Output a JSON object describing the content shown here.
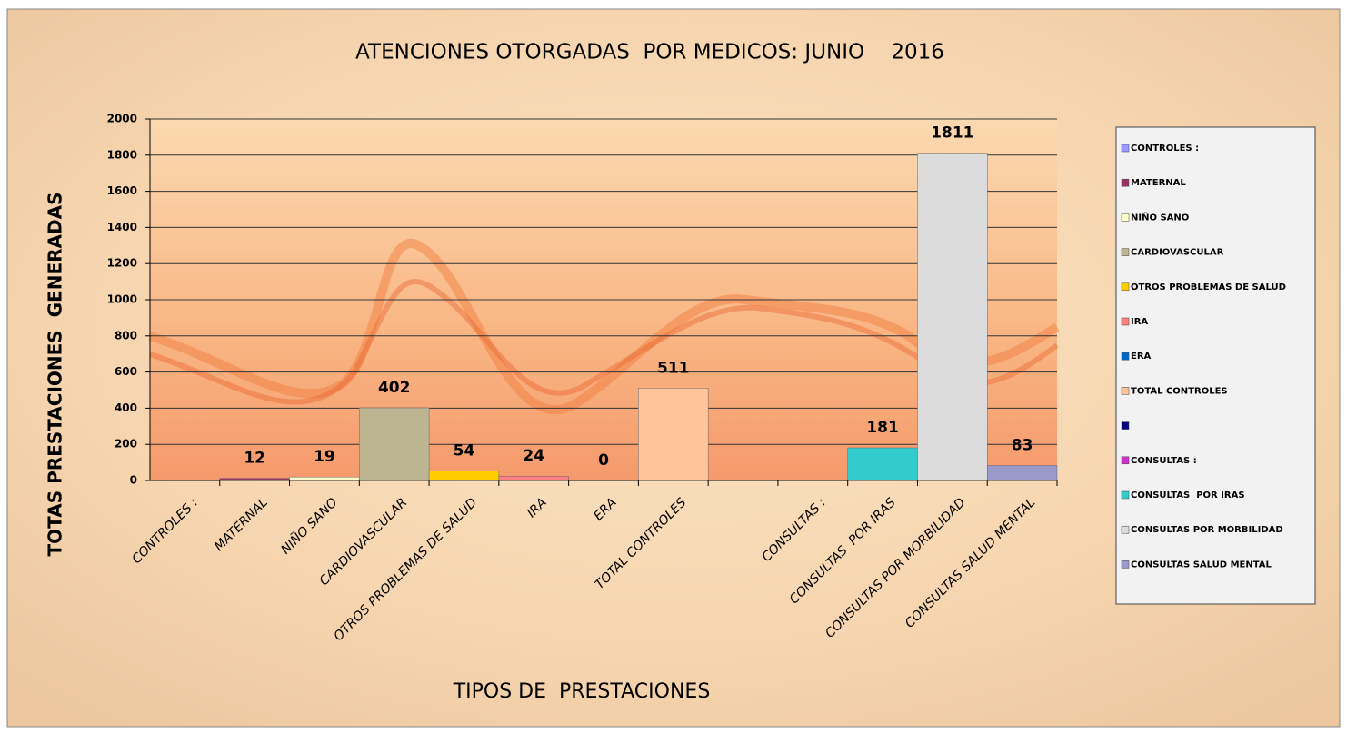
{
  "chart_data": {
    "type": "bar",
    "title": "ATENCIONES OTORGADAS  POR MEDICOS: JUNIO    2016",
    "x_label": "TIPOS DE  PRESTACIONES",
    "y_label": "TOTAS PRESTACIONES  GENERADAS",
    "categories": [
      "CONTROLES :",
      "MATERNAL",
      "NIÑO SANO",
      "CARDIOVASCULAR",
      "OTROS PROBLEMAS DE SALUD",
      "IRA",
      "ERA",
      "TOTAL CONTROLES",
      null,
      "CONSULTAS :",
      "CONSULTAS  POR IRAS",
      "CONSULTAS POR MORBILIDAD",
      "CONSULTAS SALUD MENTAL"
    ],
    "values": [
      null,
      12,
      19,
      402,
      54,
      24,
      0,
      511,
      null,
      null,
      181,
      1811,
      83
    ],
    "colors": [
      "#9999ff",
      "#993366",
      "#ffffcc",
      "#bdb592",
      "#ffcc00",
      "#ff8080",
      "#0066cc",
      "#ffc49a",
      "#000080",
      "#cc33cc",
      "#33cccc",
      "#dcdcdc",
      "#9999cc"
    ],
    "ylim": [
      0,
      2000
    ],
    "yticks": [
      0,
      200,
      400,
      600,
      800,
      1000,
      1200,
      1400,
      1600,
      1800,
      2000
    ],
    "grid": true,
    "legend": "right"
  }
}
